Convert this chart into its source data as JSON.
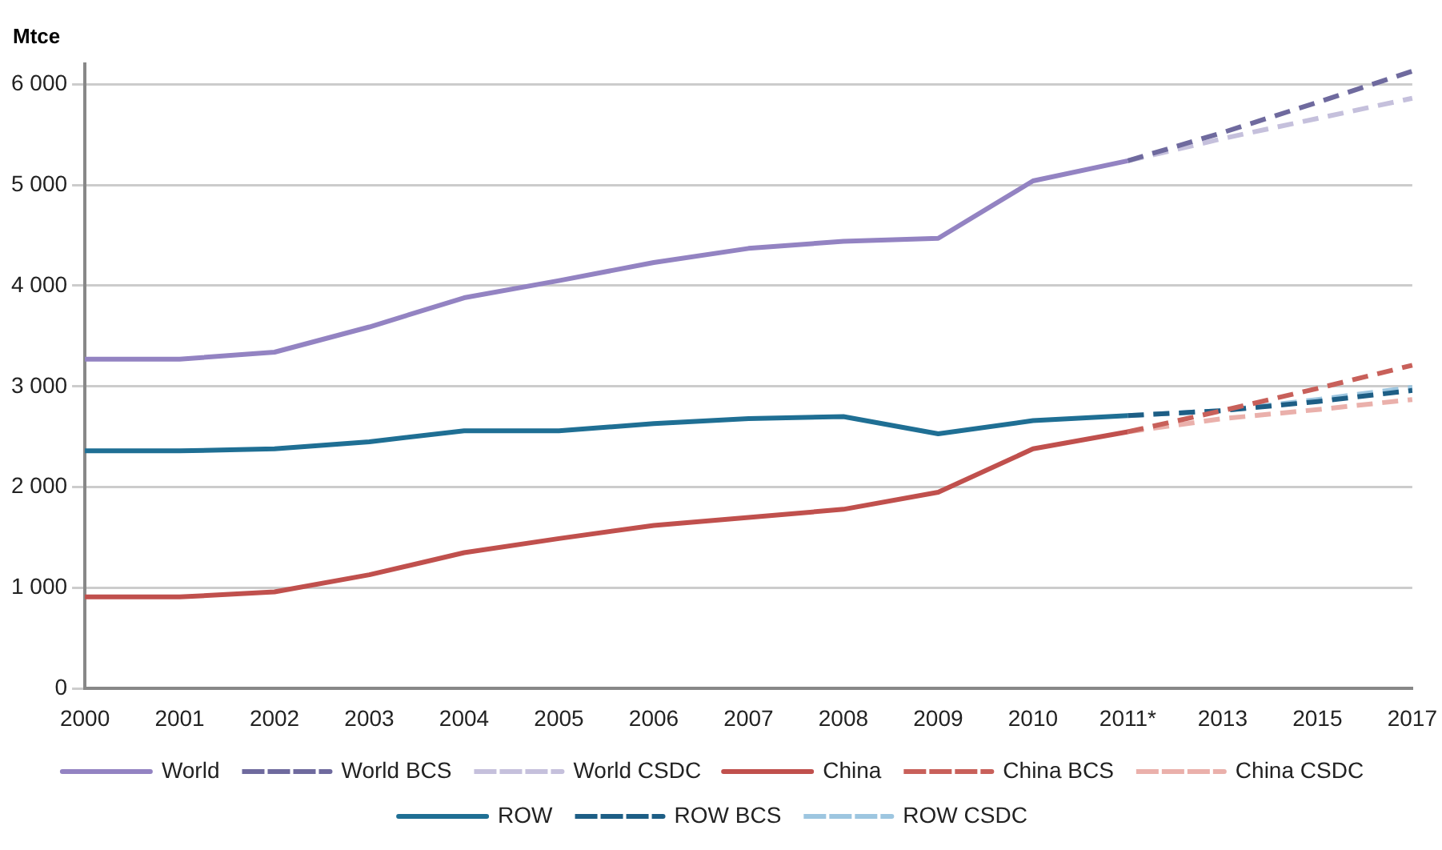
{
  "chart_data": {
    "type": "line",
    "ylabel": "Mtce",
    "categories": [
      "2000",
      "2001",
      "2002",
      "2003",
      "2004",
      "2005",
      "2006",
      "2007",
      "2008",
      "2009",
      "2010",
      "2011*",
      "2013",
      "2015",
      "2017"
    ],
    "ylim": [
      0,
      6200
    ],
    "yticks": [
      0,
      {
        "value": 1000,
        "label": "1 000"
      },
      {
        "value": 2000,
        "label": "2 000"
      },
      {
        "value": 3000,
        "label": "3 000"
      },
      {
        "value": 4000,
        "label": "4 000"
      },
      {
        "value": 5000,
        "label": "5 000"
      },
      {
        "value": 6000,
        "label": "6 000"
      }
    ],
    "grid": "y",
    "legend": "bottom",
    "marker": "none",
    "series": [
      {
        "name": "World",
        "color": "#9383c2",
        "line_style": "solid",
        "values": [
          3270,
          3270,
          3340,
          3590,
          3880,
          4050,
          4230,
          4370,
          4440,
          4470,
          5040,
          5240,
          null,
          null,
          null
        ]
      },
      {
        "name": "World BCS",
        "color": "#6f6a9e",
        "line_style": "dashed",
        "values": [
          null,
          null,
          null,
          null,
          null,
          null,
          null,
          null,
          null,
          null,
          null,
          5240,
          5520,
          5820,
          6130
        ]
      },
      {
        "name": "World CSDC",
        "color": "#c5c0dc",
        "line_style": "dashed",
        "values": [
          null,
          null,
          null,
          null,
          null,
          null,
          null,
          null,
          null,
          null,
          null,
          5240,
          5460,
          5660,
          5860
        ]
      },
      {
        "name": "China",
        "color": "#c0504d",
        "line_style": "solid",
        "values": [
          910,
          910,
          960,
          1130,
          1350,
          1490,
          1620,
          1700,
          1780,
          1950,
          2380,
          2550,
          null,
          null,
          null
        ]
      },
      {
        "name": "China BCS",
        "color": "#c8605a",
        "line_style": "dashed",
        "values": [
          null,
          null,
          null,
          null,
          null,
          null,
          null,
          null,
          null,
          null,
          null,
          2550,
          2760,
          2980,
          3210
        ]
      },
      {
        "name": "China CSDC",
        "color": "#eab0ab",
        "line_style": "dashed",
        "values": [
          null,
          null,
          null,
          null,
          null,
          null,
          null,
          null,
          null,
          null,
          null,
          2550,
          2680,
          2770,
          2870
        ]
      },
      {
        "name": "ROW",
        "color": "#1f6f94",
        "line_style": "solid",
        "values": [
          2360,
          2360,
          2380,
          2450,
          2560,
          2560,
          2630,
          2680,
          2700,
          2530,
          2660,
          2710,
          null,
          null,
          null
        ]
      },
      {
        "name": "ROW BCS",
        "color": "#1d5e85",
        "line_style": "dashed",
        "values": [
          null,
          null,
          null,
          null,
          null,
          null,
          null,
          null,
          null,
          null,
          null,
          2710,
          2760,
          2850,
          2960
        ]
      },
      {
        "name": "ROW CSDC",
        "color": "#9dc6e0",
        "line_style": "dashed",
        "values": [
          null,
          null,
          null,
          null,
          null,
          null,
          null,
          null,
          null,
          null,
          null,
          2710,
          2760,
          2870,
          2990
        ]
      }
    ]
  }
}
